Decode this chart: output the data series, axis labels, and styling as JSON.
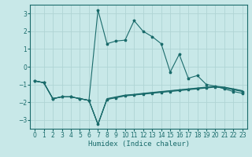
{
  "xlabel": "Humidex (Indice chaleur)",
  "bg_color": "#c8e8e8",
  "grid_color": "#b0d4d4",
  "line_color": "#1a6b6b",
  "xlim": [
    -0.5,
    23.5
  ],
  "ylim": [
    -3.5,
    3.5
  ],
  "yticks": [
    -3,
    -2,
    -1,
    0,
    1,
    2,
    3
  ],
  "xticks": [
    0,
    1,
    2,
    3,
    4,
    5,
    6,
    7,
    8,
    9,
    10,
    11,
    12,
    13,
    14,
    15,
    16,
    17,
    18,
    19,
    20,
    21,
    22,
    23
  ],
  "spike_line": {
    "x": [
      0,
      1,
      2,
      3,
      4,
      5,
      6,
      7,
      8,
      9,
      10,
      11,
      12,
      13,
      14,
      15,
      16,
      17,
      18,
      19,
      20,
      21,
      22,
      23
    ],
    "y": [
      -0.8,
      -0.9,
      -1.8,
      -1.7,
      -1.7,
      -1.8,
      -1.9,
      3.2,
      1.3,
      1.45,
      1.5,
      2.6,
      2.0,
      1.7,
      1.3,
      -0.3,
      0.7,
      -0.65,
      -0.5,
      -1.0,
      -1.1,
      -1.25,
      -1.4,
      -1.5
    ]
  },
  "flat_line1": {
    "x": [
      0,
      1,
      2,
      3,
      4,
      5,
      6,
      7,
      8,
      9,
      10,
      11,
      12,
      13,
      14,
      15,
      16,
      17,
      18,
      19,
      20,
      21,
      22,
      23
    ],
    "y": [
      -0.8,
      -0.9,
      -1.8,
      -1.7,
      -1.7,
      -1.8,
      -1.9,
      -3.25,
      -1.85,
      -1.75,
      -1.65,
      -1.6,
      -1.55,
      -1.5,
      -1.45,
      -1.4,
      -1.35,
      -1.3,
      -1.25,
      -1.2,
      -1.15,
      -1.2,
      -1.3,
      -1.4
    ]
  },
  "flat_line2": {
    "x": [
      0,
      1,
      2,
      3,
      4,
      5,
      6,
      7,
      8,
      9,
      10,
      11,
      12,
      13,
      14,
      15,
      16,
      17,
      18,
      19,
      20,
      21,
      22,
      23
    ],
    "y": [
      -0.8,
      -0.9,
      -1.8,
      -1.7,
      -1.7,
      -1.8,
      -1.9,
      -3.25,
      -1.83,
      -1.73,
      -1.63,
      -1.58,
      -1.52,
      -1.47,
      -1.42,
      -1.37,
      -1.32,
      -1.27,
      -1.22,
      -1.17,
      -1.12,
      -1.17,
      -1.27,
      -1.37
    ]
  },
  "flat_line3": {
    "x": [
      0,
      1,
      2,
      3,
      4,
      5,
      6,
      7,
      8,
      9,
      10,
      11,
      12,
      13,
      14,
      15,
      16,
      17,
      18,
      19,
      20,
      21,
      22,
      23
    ],
    "y": [
      -0.8,
      -0.9,
      -1.8,
      -1.7,
      -1.7,
      -1.8,
      -1.9,
      -3.25,
      -1.8,
      -1.7,
      -1.6,
      -1.56,
      -1.5,
      -1.45,
      -1.4,
      -1.35,
      -1.3,
      -1.25,
      -1.2,
      -1.15,
      -1.1,
      -1.15,
      -1.25,
      -1.35
    ]
  }
}
